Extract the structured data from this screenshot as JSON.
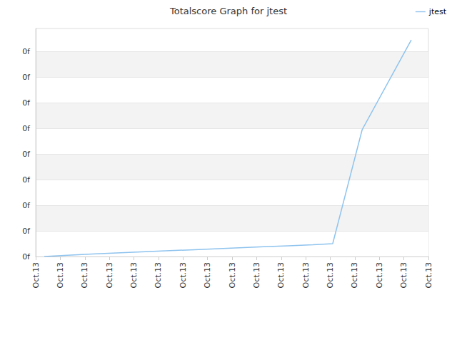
{
  "chart_data": {
    "type": "line",
    "title": "Totalscore Graph for jtest",
    "x": [
      0.35,
      1.3,
      2.3,
      3.3,
      4.3,
      5.3,
      6.3,
      7.3,
      8.3,
      9.3,
      10.3,
      11.3,
      12.1,
      13.3,
      15.3
    ],
    "series": [
      {
        "name": "jtest",
        "color": "#8ec3ee",
        "values": [
          0,
          0.05,
          0.1,
          0.14,
          0.18,
          0.22,
          0.26,
          0.3,
          0.34,
          0.38,
          0.42,
          0.46,
          0.5,
          4.95,
          8.45
        ]
      }
    ],
    "xlim": [
      0,
      16
    ],
    "xticks": [
      {
        "value": 0,
        "label": "Oct.13"
      },
      {
        "value": 1,
        "label": "Oct.13"
      },
      {
        "value": 2,
        "label": "Oct.13"
      },
      {
        "value": 3,
        "label": "Oct.13"
      },
      {
        "value": 4,
        "label": "Oct.13"
      },
      {
        "value": 5,
        "label": "Oct.13"
      },
      {
        "value": 6,
        "label": "Oct.13"
      },
      {
        "value": 7,
        "label": "Oct.13"
      },
      {
        "value": 8,
        "label": "Oct.13"
      },
      {
        "value": 9,
        "label": "Oct.13"
      },
      {
        "value": 10,
        "label": "Oct.13"
      },
      {
        "value": 11,
        "label": "Oct.13"
      },
      {
        "value": 12,
        "label": "Oct.13"
      },
      {
        "value": 13,
        "label": "Oct.13"
      },
      {
        "value": 14,
        "label": "Oct.13"
      },
      {
        "value": 15,
        "label": "Oct.13"
      },
      {
        "value": 16,
        "label": "Oct.13"
      }
    ],
    "ylim": [
      0,
      8.9
    ],
    "yticks": [
      {
        "value": 0,
        "label": "0f"
      },
      {
        "value": 1,
        "label": "0f"
      },
      {
        "value": 2,
        "label": "0f"
      },
      {
        "value": 3,
        "label": "0f"
      },
      {
        "value": 4,
        "label": "0f"
      },
      {
        "value": 5,
        "label": "0f"
      },
      {
        "value": 6,
        "label": "0f"
      },
      {
        "value": 7,
        "label": "0f"
      },
      {
        "value": 8,
        "label": "0f"
      }
    ],
    "grid": true,
    "legend": "upper right"
  }
}
